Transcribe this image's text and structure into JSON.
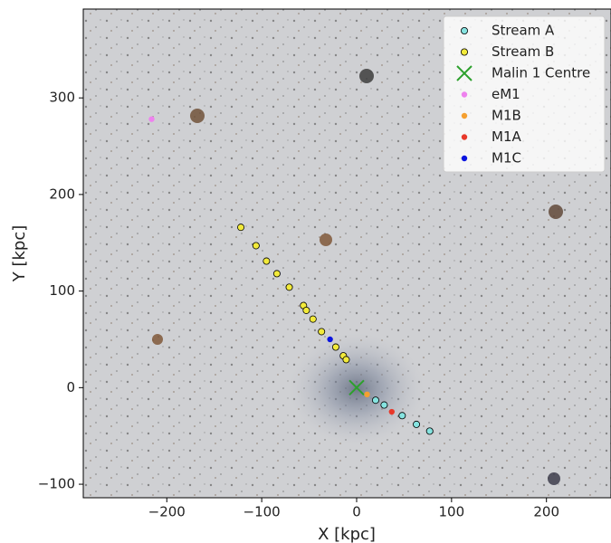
{
  "chart_data": {
    "type": "scatter",
    "xlabel": "X [kpc]",
    "ylabel": "Y [kpc]",
    "xlim": [
      -288,
      268
    ],
    "ylim": [
      -114,
      392
    ],
    "xticks": [
      {
        "value": -200,
        "label": "−200"
      },
      {
        "value": -100,
        "label": "−100"
      },
      0,
      100,
      200
    ],
    "yticks": [
      {
        "value": -100,
        "label": "−100"
      },
      0,
      100,
      200,
      300
    ],
    "legend": "upper right",
    "series": [
      {
        "name": "Stream A",
        "color": "#86e3e0",
        "marker": "o",
        "x": [
          20,
          29,
          48,
          63,
          77
        ],
        "values": [
          -13,
          -18,
          -29,
          -38,
          -45
        ]
      },
      {
        "name": "Stream B",
        "color": "#f2ea3a",
        "marker": "o",
        "x": [
          -122,
          -106,
          -95,
          -84,
          -71,
          -56,
          -53,
          -46,
          -37,
          -22,
          -14,
          -11
        ],
        "values": [
          166,
          147,
          131,
          118,
          104,
          85,
          80,
          71,
          58,
          42,
          33,
          29
        ]
      },
      {
        "name": "Malin 1 Centre",
        "color": "#2ca02c",
        "marker": "x",
        "x": [
          0
        ],
        "values": [
          0
        ]
      },
      {
        "name": "eM1",
        "color": "#ee82ee",
        "marker": "o",
        "x": [
          -216
        ],
        "values": [
          278
        ]
      },
      {
        "name": "M1B",
        "color": "#f5a030",
        "marker": "o",
        "x": [
          11
        ],
        "values": [
          -7
        ]
      },
      {
        "name": "M1A",
        "color": "#e8382a",
        "marker": "o",
        "x": [
          37
        ],
        "values": [
          -25
        ]
      },
      {
        "name": "M1C",
        "color": "#0a14e0",
        "marker": "o",
        "x": [
          -28
        ],
        "values": [
          50
        ]
      }
    ]
  }
}
